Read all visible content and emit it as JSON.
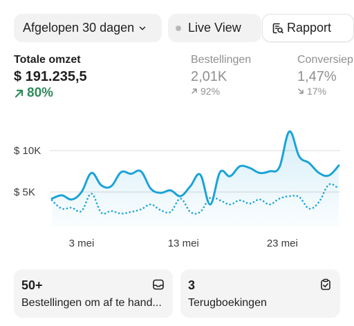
{
  "toolbar": {
    "period_label": "Afgelopen 30 dagen",
    "live_label": "Live View",
    "report_label": "Rapport"
  },
  "metrics": {
    "total": {
      "label": "Totale omzet",
      "value": "$ 191.235,5",
      "change": "80%",
      "direction": "up"
    },
    "orders": {
      "label": "Bestellingen",
      "value": "2,01K",
      "change": "92%",
      "direction": "up"
    },
    "conversion": {
      "label": "Conversiep",
      "value": "1,47%",
      "change": "17%",
      "direction": "down"
    }
  },
  "chart_data": {
    "type": "line",
    "title": "",
    "xlabel": "",
    "ylabel": "",
    "y_ticks": [
      "$ 10K",
      "$ 5K"
    ],
    "y_tick_values": [
      10000,
      5000
    ],
    "x_ticks": [
      "3 mei",
      "13 mei",
      "23 mei"
    ],
    "ylim": [
      0,
      15000
    ],
    "grid": true,
    "series": [
      {
        "style": "solid",
        "color": "#1aa3d9",
        "x": [
          1,
          2,
          3,
          4,
          5,
          6,
          7,
          8,
          9,
          10,
          11,
          12,
          13,
          14,
          15,
          16,
          17,
          18,
          19,
          20,
          21,
          22,
          23,
          24,
          25,
          26,
          27,
          28,
          29,
          30
        ],
        "values": [
          4200,
          4600,
          4100,
          5000,
          7300,
          5800,
          5700,
          7400,
          7200,
          7500,
          5400,
          4900,
          5200,
          4500,
          5700,
          7100,
          3500,
          7400,
          6900,
          8100,
          7900,
          7300,
          7500,
          8000,
          12300,
          9300,
          8500,
          7300,
          7000,
          8200
        ]
      },
      {
        "style": "dotted",
        "color": "#1aa3d9",
        "x": [
          1,
          2,
          3,
          4,
          5,
          6,
          7,
          8,
          9,
          10,
          11,
          12,
          13,
          14,
          15,
          16,
          17,
          18,
          19,
          20,
          21,
          22,
          23,
          24,
          25,
          26,
          27,
          28,
          29,
          30
        ],
        "values": [
          4000,
          3000,
          3100,
          2700,
          4800,
          2500,
          2700,
          2400,
          2600,
          2900,
          3500,
          2800,
          2600,
          4200,
          2600,
          2600,
          4300,
          4000,
          3500,
          4000,
          3600,
          4100,
          3500,
          4200,
          4500,
          4400,
          3000,
          3800,
          5900,
          5400
        ]
      }
    ]
  },
  "cards": [
    {
      "number": "50+",
      "description": "Bestellingen om af te hand...",
      "icon": "inbox-icon"
    },
    {
      "number": "3",
      "description": "Terugboekingen",
      "icon": "clipboard-check-icon"
    }
  ],
  "colors": {
    "accent_line": "#1aa3d9",
    "positive": "#2e8a5a",
    "muted": "#8f8f8f",
    "pill_bg": "#f2f2f2"
  }
}
